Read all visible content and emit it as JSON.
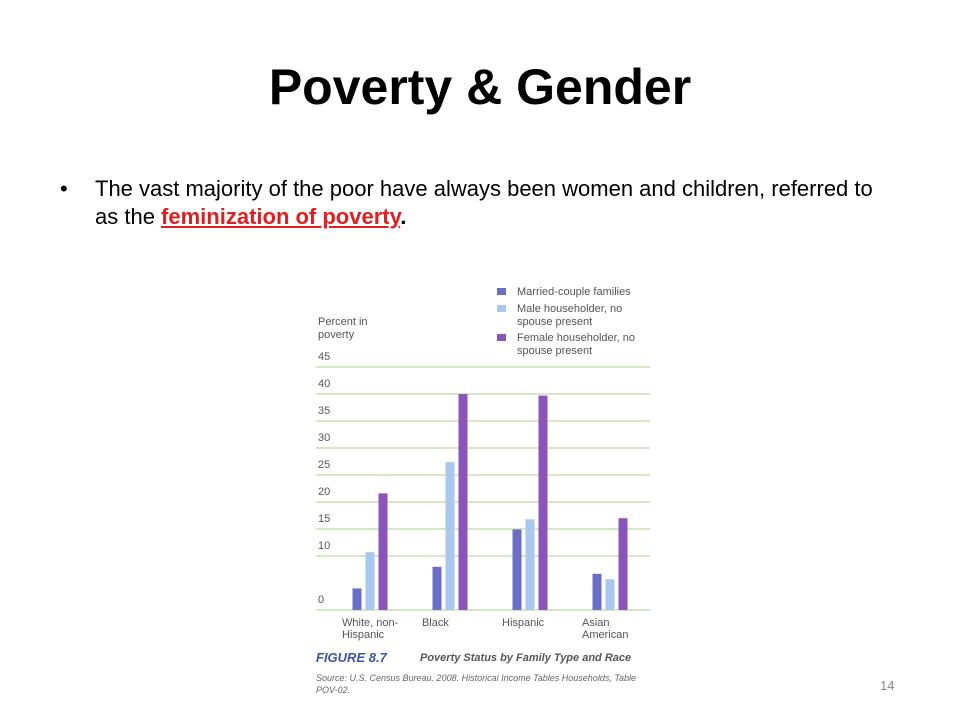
{
  "slide": {
    "title": "Poverty & Gender",
    "bullet": {
      "text": "The vast majority of the poor have always been women and children, referred to as the ",
      "highlight": "feminization of poverty",
      "end": "."
    },
    "page_number": "14"
  },
  "chart_data": {
    "type": "bar",
    "ylabel": [
      "Percent in",
      "poverty"
    ],
    "categories": [
      [
        "White, non-",
        "Hispanic"
      ],
      [
        "Black"
      ],
      [
        "Hispanic"
      ],
      [
        "Asian",
        "American"
      ]
    ],
    "series": [
      {
        "name": "Married-couple families",
        "color": "#6b6fc4",
        "values": [
          4,
          8,
          14.9,
          6.7
        ]
      },
      {
        "name": "Male householder, no spouse present",
        "color": "#a9c8f0",
        "values": [
          10.7,
          27.4,
          16.8,
          5.7
        ]
      },
      {
        "name": "Female householder, no spouse present",
        "color": "#8a55b8",
        "values": [
          21.6,
          40,
          39.7,
          17
        ]
      }
    ],
    "ylim": [
      0,
      45
    ],
    "yticks": [
      0,
      10,
      15,
      20,
      25,
      30,
      35,
      40,
      45
    ],
    "grid": true,
    "legend": "top-right",
    "figure_label": "FIGURE 8.7",
    "caption": "Poverty Status by Family Type and Race",
    "source": "Source: U.S. Census Bureau. 2008. Historical Income Tables Households, Table POV-02."
  }
}
